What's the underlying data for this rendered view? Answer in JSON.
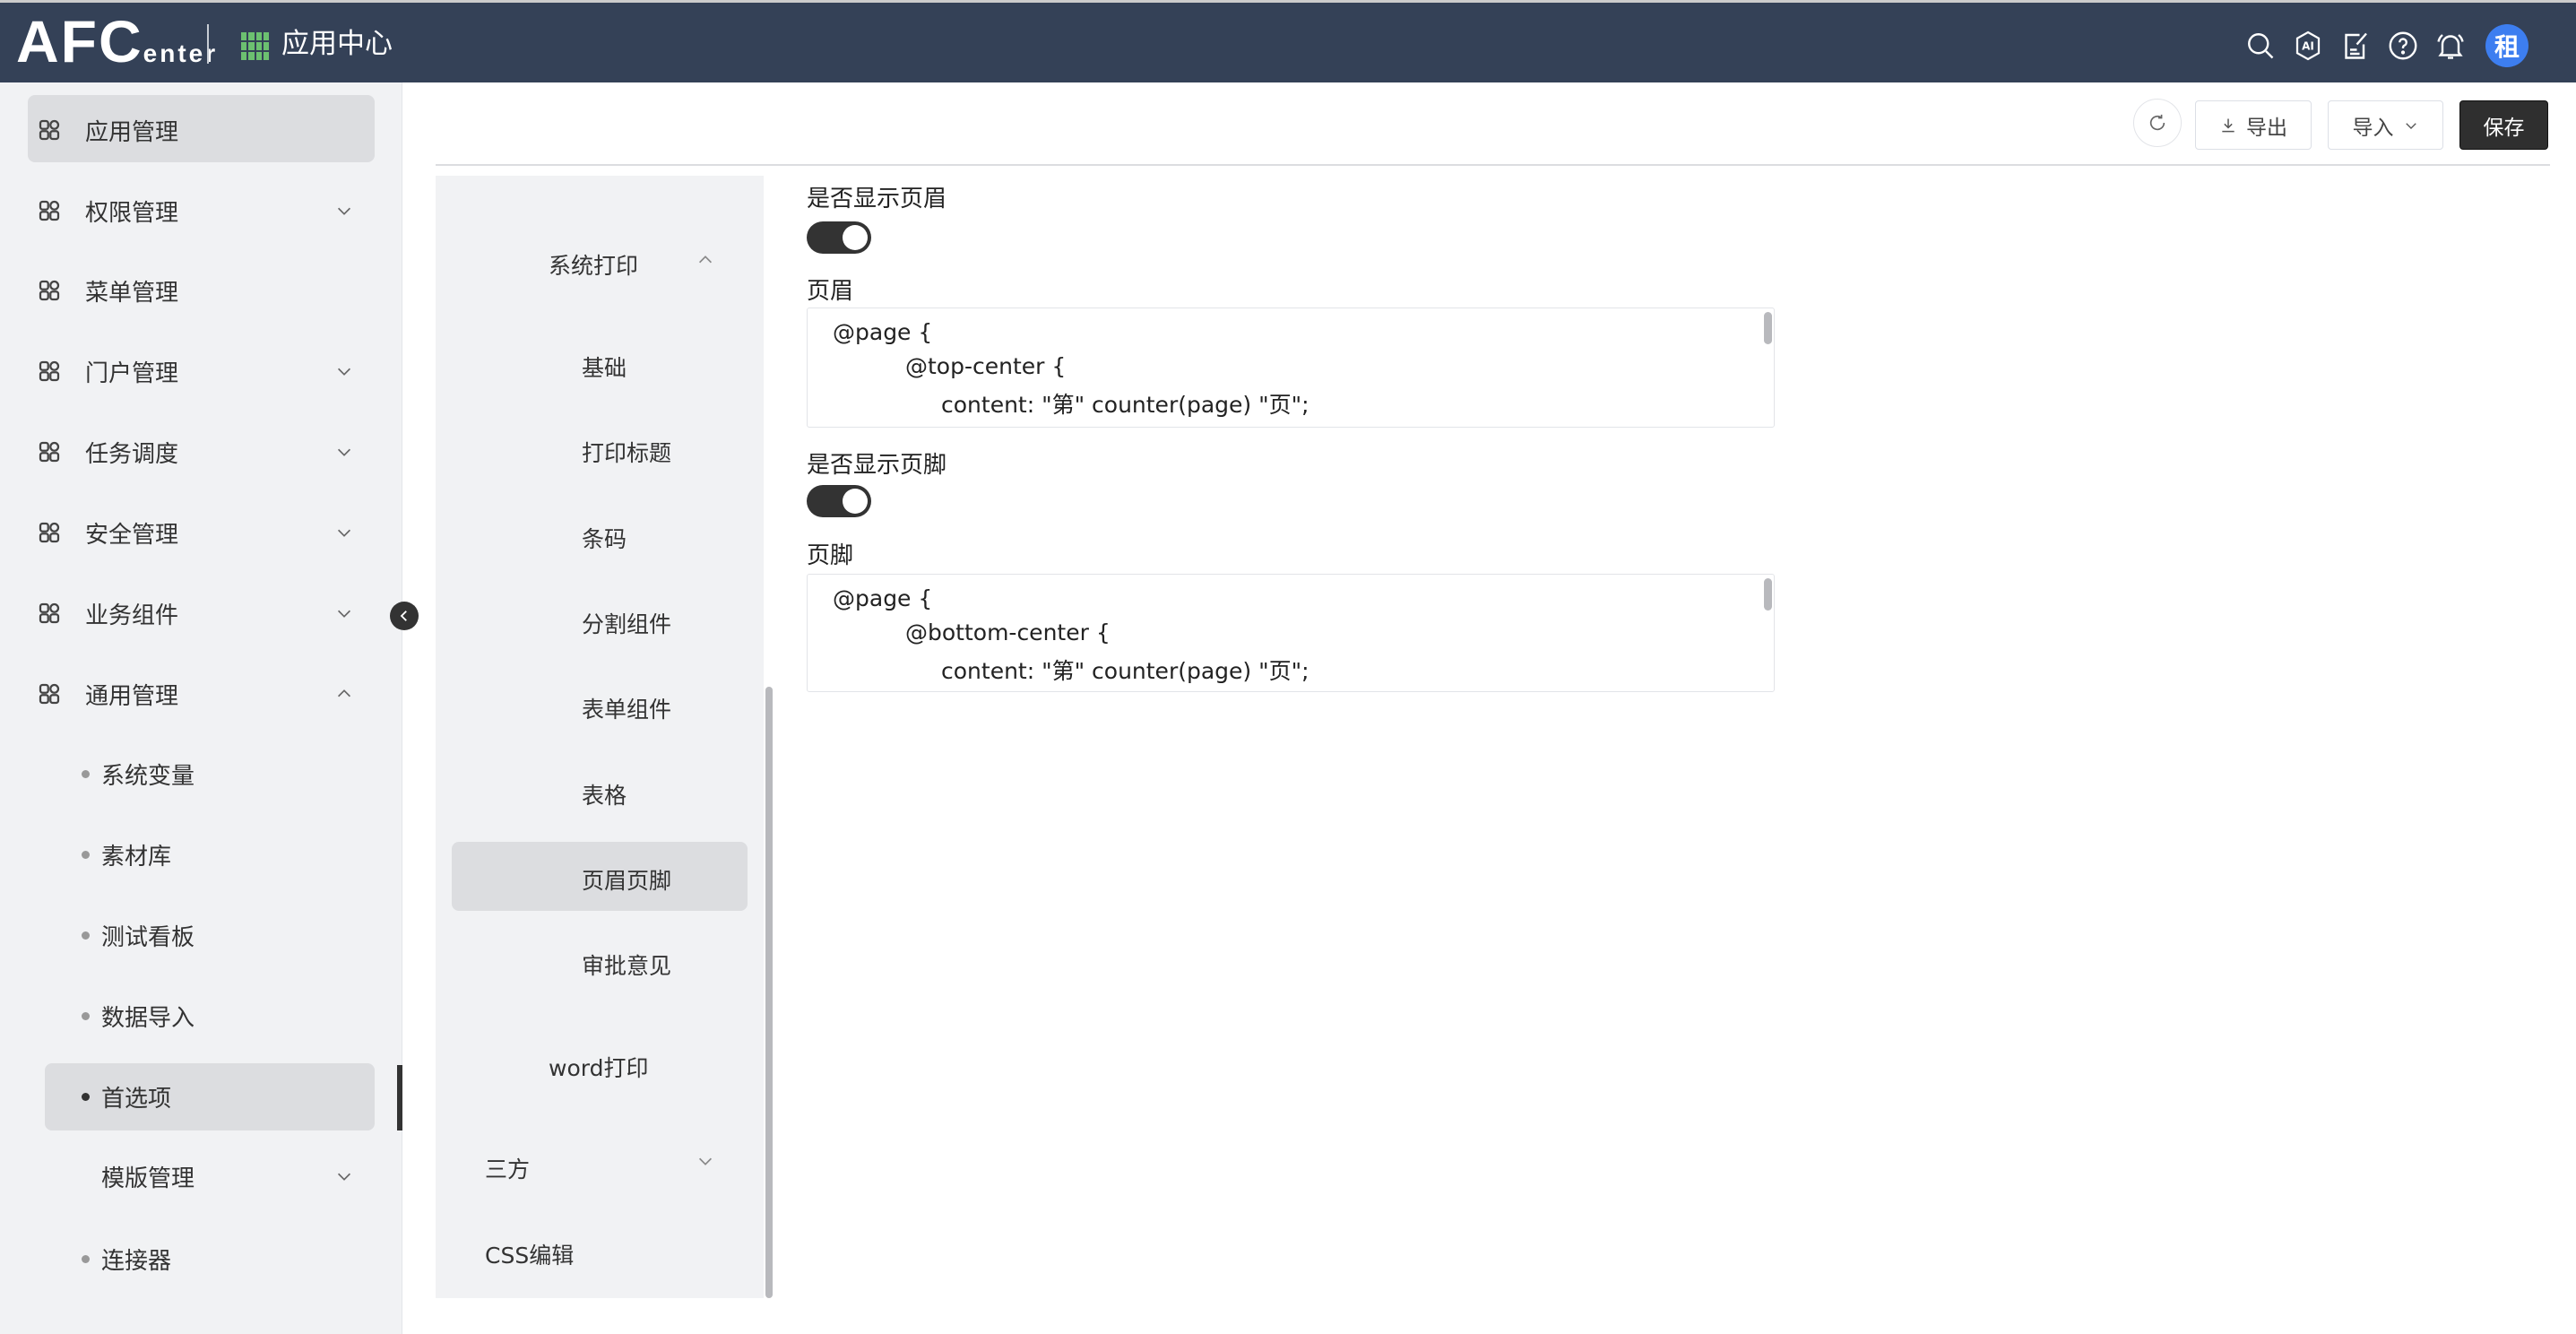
{
  "header": {
    "logo_main": "AFC",
    "logo_sub": "enter",
    "app_title": "应用中心",
    "icons": [
      "search-icon",
      "ai-icon",
      "edit-note-icon",
      "help-icon",
      "bell-icon"
    ],
    "avatar_text": "租",
    "colors": {
      "bg": "#344157",
      "avatar": "#3d7ef0",
      "grid": "#6cc070"
    }
  },
  "sidebar": {
    "items": [
      {
        "label": "应用管理",
        "icon": "apps-icon",
        "active": true
      },
      {
        "label": "权限管理",
        "icon": "user-stamp-icon",
        "chevron": "down"
      },
      {
        "label": "菜单管理",
        "icon": "menu-doc-icon"
      },
      {
        "label": "门户管理",
        "icon": "portal-icon",
        "chevron": "down"
      },
      {
        "label": "任务调度",
        "icon": "robot-icon",
        "chevron": "down"
      },
      {
        "label": "安全管理",
        "icon": "shield-icon",
        "chevron": "down"
      },
      {
        "label": "业务组件",
        "icon": "component-icon",
        "chevron": "down"
      },
      {
        "label": "通用管理",
        "icon": "settings-icon",
        "chevron": "up"
      }
    ],
    "sub_items": [
      {
        "label": "系统变量"
      },
      {
        "label": "素材库"
      },
      {
        "label": "测试看板"
      },
      {
        "label": "数据导入"
      },
      {
        "label": "首选项",
        "active": true
      },
      {
        "label": "模版管理",
        "chevron": "down"
      },
      {
        "label": "连接器"
      }
    ]
  },
  "toolbar": {
    "export_label": "导出",
    "import_label": "导入",
    "save_label": "保存"
  },
  "nav": {
    "group": "系统打印",
    "children": [
      "基础",
      "打印标题",
      "条码",
      "分割组件",
      "表单组件",
      "表格",
      "页眉页脚",
      "审批意见"
    ],
    "active": "页眉页脚",
    "word": "word打印",
    "third": "三方",
    "css": "CSS编辑"
  },
  "form": {
    "show_header_label": "是否显示页眉",
    "show_header": true,
    "header_label": "页眉",
    "header_code": [
      "@page {",
      "@top-center {",
      "content: \"第\" counter(page) \"页\";"
    ],
    "show_footer_label": "是否显示页脚",
    "show_footer": true,
    "footer_label": "页脚",
    "footer_code": [
      "@page {",
      "@bottom-center {",
      "content: \"第\" counter(page) \"页\";"
    ]
  }
}
